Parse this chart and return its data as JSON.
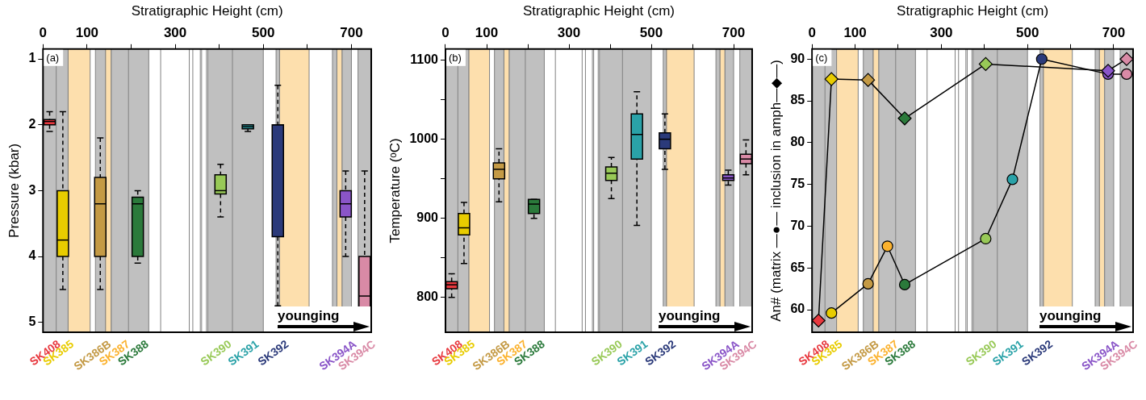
{
  "chart_data": [
    {
      "type": "box",
      "xlabel": "Stratigraphic Height (cm)",
      "ylabel": "Pressure (kbar)",
      "xlim": [
        0,
        745
      ],
      "xticks": [
        0,
        100,
        {
          "value": 200,
          "label": null
        },
        300,
        {
          "value": 400,
          "label": null
        },
        500,
        {
          "value": 600,
          "label": null
        },
        700
      ],
      "ylim": [
        5.15,
        0.85
      ],
      "yticks": [
        1,
        2,
        3,
        4,
        5
      ],
      "bands": [
        {
          "axis": "x",
          "from": 0,
          "to": 57,
          "color": "#c0c0c0"
        },
        {
          "axis": "x",
          "from": 57,
          "to": 107,
          "color": "#fddfad"
        },
        {
          "axis": "x",
          "from": 119,
          "to": 142,
          "color": "#c0c0c0"
        },
        {
          "axis": "x",
          "from": 142,
          "to": 155,
          "color": "#fddfad"
        },
        {
          "axis": "x",
          "from": 155,
          "to": 240,
          "color": "#c0c0c0"
        },
        {
          "axis": "x",
          "from": 374,
          "to": 500,
          "color": "#c0c0c0"
        },
        {
          "axis": "x",
          "from": 529,
          "to": 537,
          "color": "#c0c0c0"
        },
        {
          "axis": "x",
          "from": 537,
          "to": 604,
          "color": "#fddfad"
        },
        {
          "axis": "x",
          "from": 657,
          "to": 667,
          "color": "#c0c0c0"
        },
        {
          "axis": "x",
          "from": 667,
          "to": 679,
          "color": "#fddfad"
        },
        {
          "axis": "x",
          "from": 679,
          "to": 700,
          "color": "#c0c0c0"
        },
        {
          "axis": "x",
          "from": 715,
          "to": 745,
          "color": "#c0c0c0"
        }
      ],
      "ref_lines": [
        {
          "axis": "x",
          "value": 30,
          "color": "#808080"
        },
        {
          "axis": "x",
          "value": 194,
          "color": "#808080"
        },
        {
          "axis": "x",
          "value": 267,
          "color": "#808080"
        },
        {
          "axis": "x",
          "value": 332,
          "color": "#808080"
        },
        {
          "axis": "x",
          "value": 340,
          "color": "#808080"
        },
        {
          "axis": "x",
          "value": 357,
          "color": "#808080"
        },
        {
          "axis": "x",
          "value": 360,
          "color": "#808080"
        },
        {
          "axis": "x",
          "value": 371,
          "color": "#808080"
        },
        {
          "axis": "x",
          "value": 430,
          "color": "#808080"
        }
      ],
      "annotations": [
        "(a)",
        "younging"
      ],
      "series": [
        {
          "name": "SK408",
          "color": "#e8393f",
          "x": [
            15
          ],
          "boxes": [
            {
              "low": 1.8,
              "q1": 1.92,
              "median": 1.95,
              "q3": 2.0,
              "high": 2.1
            }
          ]
        },
        {
          "name": "SK385",
          "color": "#e8cc00",
          "x": [
            45
          ],
          "boxes": [
            {
              "low": 1.8,
              "q1": 3.0,
              "median": 3.75,
              "q3": 4.0,
              "high": 4.5
            }
          ]
        },
        {
          "name": "SK386B",
          "color": "#c49a45",
          "x": [
            130
          ],
          "boxes": [
            {
              "low": 2.2,
              "q1": 2.8,
              "median": 3.2,
              "q3": 4.0,
              "high": 4.5
            }
          ]
        },
        {
          "name": "SK387",
          "color": "#fbb22e"
        },
        {
          "name": "SK388",
          "color": "#2b7a3b",
          "x": [
            215
          ],
          "boxes": [
            {
              "low": 3.0,
              "q1": 3.1,
              "median": 3.2,
              "q3": 4.0,
              "high": 4.1
            }
          ]
        },
        {
          "name": "SK390",
          "color": "#98c957",
          "x": [
            403
          ],
          "boxes": [
            {
              "low": 2.6,
              "q1": 2.76,
              "median": 3.0,
              "q3": 3.05,
              "high": 3.4
            }
          ]
        },
        {
          "name": "SK391",
          "color": "#2aa2a8",
          "x": [
            465
          ],
          "boxes": [
            {
              "low": 2.0,
              "q1": 2.0,
              "median": 2.03,
              "q3": 2.06,
              "high": 2.1
            }
          ]
        },
        {
          "name": "SK392",
          "color": "#2b3a7a",
          "x": [
            533
          ],
          "boxes": [
            {
              "low": 1.4,
              "q1": 2.0,
              "median": 2.0,
              "q3": 3.7,
              "high": 4.75
            }
          ]
        },
        {
          "name": "SK394A",
          "color": "#8a55c8",
          "x": [
            687
          ],
          "boxes": [
            {
              "low": 2.7,
              "q1": 3.0,
              "median": 3.2,
              "q3": 3.4,
              "high": 4.0
            }
          ]
        },
        {
          "name": "SK394C",
          "color": "#d98aa6",
          "x": [
            730
          ],
          "boxes": [
            {
              "low": 2.7,
              "q1": 4.0,
              "median": 4.6,
              "q3": 4.88,
              "high": 4.98
            }
          ]
        }
      ]
    },
    {
      "type": "box",
      "xlabel": "Stratigraphic Height (cm)",
      "ylabel": "Temperature (ᵒC)",
      "xlim": [
        0,
        745
      ],
      "xticks": [
        0,
        100,
        {
          "value": 200,
          "label": null
        },
        300,
        {
          "value": 400,
          "label": null
        },
        500,
        {
          "value": 600,
          "label": null
        },
        700
      ],
      "ylim": [
        756,
        1114
      ],
      "yticks": [
        800,
        {
          "value": 850,
          "label": null
        },
        900,
        {
          "value": 950,
          "label": null
        },
        1000,
        {
          "value": 1050,
          "label": null
        },
        1100
      ],
      "bands": [
        {
          "axis": "x",
          "from": 0,
          "to": 57,
          "color": "#c0c0c0"
        },
        {
          "axis": "x",
          "from": 57,
          "to": 107,
          "color": "#fddfad"
        },
        {
          "axis": "x",
          "from": 119,
          "to": 142,
          "color": "#c0c0c0"
        },
        {
          "axis": "x",
          "from": 142,
          "to": 155,
          "color": "#fddfad"
        },
        {
          "axis": "x",
          "from": 155,
          "to": 240,
          "color": "#c0c0c0"
        },
        {
          "axis": "x",
          "from": 374,
          "to": 500,
          "color": "#c0c0c0"
        },
        {
          "axis": "x",
          "from": 529,
          "to": 537,
          "color": "#c0c0c0"
        },
        {
          "axis": "x",
          "from": 537,
          "to": 604,
          "color": "#fddfad"
        },
        {
          "axis": "x",
          "from": 657,
          "to": 667,
          "color": "#c0c0c0"
        },
        {
          "axis": "x",
          "from": 667,
          "to": 679,
          "color": "#fddfad"
        },
        {
          "axis": "x",
          "from": 679,
          "to": 700,
          "color": "#c0c0c0"
        },
        {
          "axis": "x",
          "from": 715,
          "to": 745,
          "color": "#c0c0c0"
        }
      ],
      "ref_lines": [
        {
          "axis": "x",
          "value": 30,
          "color": "#808080"
        },
        {
          "axis": "x",
          "value": 194,
          "color": "#808080"
        },
        {
          "axis": "x",
          "value": 267,
          "color": "#808080"
        },
        {
          "axis": "x",
          "value": 332,
          "color": "#808080"
        },
        {
          "axis": "x",
          "value": 340,
          "color": "#808080"
        },
        {
          "axis": "x",
          "value": 357,
          "color": "#808080"
        },
        {
          "axis": "x",
          "value": 360,
          "color": "#808080"
        },
        {
          "axis": "x",
          "value": 371,
          "color": "#808080"
        },
        {
          "axis": "x",
          "value": 430,
          "color": "#808080"
        }
      ],
      "annotations": [
        "(b)",
        "younging"
      ],
      "series": [
        {
          "name": "SK408",
          "color": "#e8393f",
          "x": [
            15
          ],
          "boxes": [
            {
              "low": 800,
              "q1": 811,
              "median": 816,
              "q3": 820,
              "high": 830
            }
          ]
        },
        {
          "name": "SK385",
          "color": "#e8cc00",
          "x": [
            45
          ],
          "boxes": [
            {
              "low": 843,
              "q1": 879,
              "median": 888,
              "q3": 906,
              "high": 920
            }
          ]
        },
        {
          "name": "SK386B",
          "color": "#c49a45",
          "x": [
            130
          ],
          "boxes": [
            {
              "low": 921,
              "q1": 950,
              "median": 962,
              "q3": 970,
              "high": 988
            }
          ]
        },
        {
          "name": "SK387",
          "color": "#fbb22e"
        },
        {
          "name": "SK388",
          "color": "#2b7a3b",
          "x": [
            215
          ],
          "boxes": [
            {
              "low": 900,
              "q1": 906,
              "median": 918,
              "q3": 924,
              "high": 924
            }
          ]
        },
        {
          "name": "SK390",
          "color": "#98c957",
          "x": [
            403
          ],
          "boxes": [
            {
              "low": 925,
              "q1": 948,
              "median": 957,
              "q3": 965,
              "high": 977
            }
          ]
        },
        {
          "name": "SK391",
          "color": "#2aa2a8",
          "x": [
            465
          ],
          "boxes": [
            {
              "low": 891,
              "q1": 975,
              "median": 1006,
              "q3": 1032,
              "high": 1060
            }
          ]
        },
        {
          "name": "SK392",
          "color": "#2b3a7a",
          "x": [
            533
          ],
          "boxes": [
            {
              "low": 962,
              "q1": 988,
              "median": 1000,
              "q3": 1008,
              "high": 1032
            }
          ]
        },
        {
          "name": "SK394A",
          "color": "#8a55c8",
          "x": [
            687
          ],
          "boxes": [
            {
              "low": 942,
              "q1": 948,
              "median": 951,
              "q3": 955,
              "high": 961
            }
          ]
        },
        {
          "name": "SK394C",
          "color": "#d98aa6",
          "x": [
            730
          ],
          "boxes": [
            {
              "low": 955,
              "q1": 969,
              "median": 975,
              "q3": 981,
              "high": 999
            }
          ]
        }
      ]
    },
    {
      "type": "line",
      "xlabel": "Stratigraphic Height (cm)",
      "ylabel": "An# (matrix —●— inclusion in amph—◆—)",
      "xlim": [
        0,
        745
      ],
      "xticks": [
        0,
        100,
        {
          "value": 200,
          "label": null
        },
        300,
        {
          "value": 400,
          "label": null
        },
        500,
        {
          "value": 600,
          "label": null
        },
        700
      ],
      "ylim": [
        57.3,
        91.2
      ],
      "yticks": [
        60,
        65,
        70,
        75,
        80,
        85,
        90
      ],
      "bands": [
        {
          "axis": "x",
          "from": 0,
          "to": 57,
          "color": "#c0c0c0"
        },
        {
          "axis": "x",
          "from": 57,
          "to": 107,
          "color": "#fddfad"
        },
        {
          "axis": "x",
          "from": 119,
          "to": 142,
          "color": "#c0c0c0"
        },
        {
          "axis": "x",
          "from": 142,
          "to": 155,
          "color": "#fddfad"
        },
        {
          "axis": "x",
          "from": 155,
          "to": 240,
          "color": "#c0c0c0"
        },
        {
          "axis": "x",
          "from": 374,
          "to": 500,
          "color": "#c0c0c0"
        },
        {
          "axis": "x",
          "from": 529,
          "to": 537,
          "color": "#c0c0c0"
        },
        {
          "axis": "x",
          "from": 537,
          "to": 604,
          "color": "#fddfad"
        },
        {
          "axis": "x",
          "from": 657,
          "to": 667,
          "color": "#c0c0c0"
        },
        {
          "axis": "x",
          "from": 667,
          "to": 679,
          "color": "#fddfad"
        },
        {
          "axis": "x",
          "from": 679,
          "to": 700,
          "color": "#c0c0c0"
        },
        {
          "axis": "x",
          "from": 715,
          "to": 745,
          "color": "#c0c0c0"
        }
      ],
      "ref_lines": [
        {
          "axis": "x",
          "value": 30,
          "color": "#808080"
        },
        {
          "axis": "x",
          "value": 194,
          "color": "#808080"
        },
        {
          "axis": "x",
          "value": 267,
          "color": "#808080"
        },
        {
          "axis": "x",
          "value": 332,
          "color": "#808080"
        },
        {
          "axis": "x",
          "value": 340,
          "color": "#808080"
        },
        {
          "axis": "x",
          "value": 357,
          "color": "#808080"
        },
        {
          "axis": "x",
          "value": 360,
          "color": "#808080"
        },
        {
          "axis": "x",
          "value": 371,
          "color": "#808080"
        },
        {
          "axis": "x",
          "value": 430,
          "color": "#808080"
        }
      ],
      "annotations": [
        "(c)",
        "younging",
        "SK408",
        "SK385",
        "SK386B",
        "SK387",
        "SK388",
        "SK390",
        "SK391",
        "SK392",
        "SK394A",
        "SK394C"
      ],
      "series": [
        {
          "color": "#000000",
          "marker": "circle",
          "x": [
            45,
            130,
            175,
            215,
            403,
            465,
            533,
            687,
            730
          ],
          "values": [
            59.6,
            63.1,
            67.6,
            63.0,
            68.5,
            75.6,
            90.0,
            88.2,
            88.2
          ],
          "colors": [
            "#e8cc00",
            "#c49a45",
            "#fbb22e",
            "#2b7a3b",
            "#98c957",
            "#2aa2a8",
            "#2b3a7a",
            "#8a55c8",
            "#d98aa6"
          ]
        },
        {
          "color": "#000000",
          "marker": "diamond",
          "x": [
            15,
            45,
            130,
            215,
            403,
            687,
            730
          ],
          "values": [
            58.7,
            87.6,
            87.5,
            82.9,
            89.4,
            88.6,
            90.0
          ],
          "colors": [
            "#e8393f",
            "#e8cc00",
            "#c49a45",
            "#2b7a3b",
            "#98c957",
            "#8a55c8",
            "#d98aa6"
          ]
        }
      ]
    }
  ]
}
